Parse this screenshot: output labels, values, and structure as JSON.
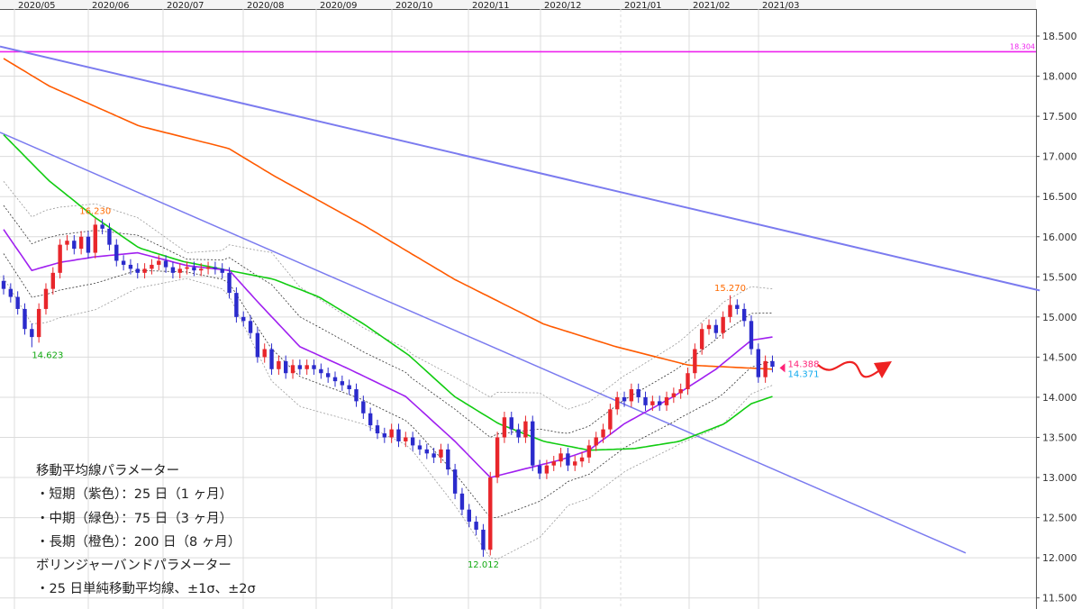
{
  "chart_data": {
    "type": "candlestick",
    "x_ticks": [
      "2020/05",
      "2020/06",
      "2020/07",
      "2020/08",
      "2020/09",
      "2020/10",
      "2020/11",
      "2020/12",
      "2021/01",
      "2021/02",
      "2021/03"
    ],
    "y_ticks": [
      "18.500",
      "18.000",
      "17.500",
      "17.000",
      "16.500",
      "16.000",
      "15.500",
      "15.000",
      "14.500",
      "14.000",
      "13.500",
      "13.000",
      "12.500",
      "12.000",
      "11.500"
    ],
    "ylim": [
      11.5,
      18.5
    ],
    "grid": true,
    "colors": {
      "up": "#e8262b",
      "down": "#2b2bcc",
      "ma_short": "#a020f0",
      "ma_mid": "#11cc11",
      "ma_long": "#ff5a00",
      "bollinger": "#777777",
      "trendline": "#7b7bef",
      "resistance": "#ee22ee"
    },
    "closes": [
      15.35,
      15.25,
      15.1,
      14.85,
      14.75,
      15.1,
      15.35,
      15.55,
      15.9,
      15.95,
      15.85,
      16.0,
      15.8,
      16.15,
      16.1,
      15.9,
      15.7,
      15.65,
      15.6,
      15.55,
      15.6,
      15.65,
      15.7,
      15.62,
      15.55,
      15.6,
      15.62,
      15.58,
      15.6,
      15.62,
      15.6,
      15.55,
      15.3,
      15.0,
      14.95,
      14.8,
      14.5,
      14.6,
      14.35,
      14.45,
      14.3,
      14.4,
      14.35,
      14.4,
      14.35,
      14.3,
      14.25,
      14.2,
      14.15,
      14.1,
      13.95,
      13.8,
      13.65,
      13.55,
      13.5,
      13.6,
      13.45,
      13.5,
      13.4,
      13.35,
      13.3,
      13.25,
      13.35,
      13.1,
      12.8,
      12.6,
      12.45,
      12.35,
      12.1,
      13.0,
      13.5,
      13.75,
      13.6,
      13.5,
      13.7,
      13.15,
      13.05,
      13.15,
      13.2,
      13.3,
      13.15,
      13.2,
      13.25,
      13.4,
      13.5,
      13.6,
      13.85,
      14.0,
      13.95,
      14.1,
      14.0,
      13.9,
      13.95,
      13.9,
      14.0,
      14.05,
      14.1,
      14.3,
      14.6,
      14.85,
      14.9,
      14.8,
      15.0,
      15.15,
      15.1,
      14.95,
      14.6,
      14.25,
      14.45,
      14.38
    ],
    "first_open": 15.45,
    "ma_short_25": [
      [
        0,
        16.09
      ],
      [
        4,
        15.58
      ],
      [
        8,
        15.68
      ],
      [
        13,
        15.75
      ],
      [
        19,
        15.8
      ],
      [
        26,
        15.64
      ],
      [
        32,
        15.58
      ],
      [
        36,
        15.19
      ],
      [
        42,
        14.63
      ],
      [
        49,
        14.35
      ],
      [
        57,
        14.01
      ],
      [
        64,
        13.45
      ],
      [
        69,
        13.0
      ],
      [
        74,
        13.11
      ],
      [
        79,
        13.22
      ],
      [
        83,
        13.34
      ],
      [
        88,
        13.67
      ],
      [
        95,
        14.01
      ],
      [
        101,
        14.35
      ],
      [
        106,
        14.71
      ],
      [
        109,
        14.75
      ]
    ],
    "ma_mid_75": [
      [
        0,
        17.27
      ],
      [
        6.4,
        16.7
      ],
      [
        12.8,
        16.25
      ],
      [
        19.2,
        15.86
      ],
      [
        25.5,
        15.69
      ],
      [
        31.9,
        15.58
      ],
      [
        38.3,
        15.47
      ],
      [
        44.7,
        15.25
      ],
      [
        51.1,
        14.91
      ],
      [
        57.5,
        14.52
      ],
      [
        63.9,
        14.01
      ],
      [
        70.2,
        13.67
      ],
      [
        76.6,
        13.45
      ],
      [
        83,
        13.34
      ],
      [
        89.4,
        13.36
      ],
      [
        95.8,
        13.45
      ],
      [
        102.2,
        13.67
      ],
      [
        106,
        13.92
      ],
      [
        109,
        14.01
      ]
    ],
    "ma_long_200": [
      [
        0,
        18.22
      ],
      [
        6.4,
        17.88
      ],
      [
        19.2,
        17.38
      ],
      [
        31.9,
        17.1
      ],
      [
        38.3,
        16.76
      ],
      [
        51.1,
        16.14
      ],
      [
        63.9,
        15.47
      ],
      [
        76.6,
        14.91
      ],
      [
        86.8,
        14.63
      ],
      [
        97.1,
        14.4
      ],
      [
        109,
        14.35
      ]
    ],
    "bollinger_sigma": [
      [
        0,
        0.3
      ],
      [
        6,
        0.35
      ],
      [
        13,
        0.33
      ],
      [
        20,
        0.2
      ],
      [
        26,
        0.08
      ],
      [
        31,
        0.12
      ],
      [
        38,
        0.4
      ],
      [
        45,
        0.35
      ],
      [
        51,
        0.3
      ],
      [
        58,
        0.3
      ],
      [
        64,
        0.4
      ],
      [
        70,
        0.52
      ],
      [
        76,
        0.45
      ],
      [
        80,
        0.3
      ],
      [
        89,
        0.3
      ],
      [
        96,
        0.32
      ],
      [
        102,
        0.38
      ],
      [
        109,
        0.3
      ]
    ],
    "trendlines": [
      {
        "from": [
          0,
          18.37
        ],
        "to": [
          146.9,
          15.33
        ]
      },
      {
        "from": [
          0,
          17.3
        ],
        "to": [
          136.4,
          12.06
        ]
      }
    ],
    "resistance": {
      "value": 18.304,
      "label": "18.304"
    },
    "annotations": [
      {
        "text": "16.230",
        "bar": 13,
        "value": 16.23,
        "color": "#ff6a00",
        "pos": "above"
      },
      {
        "text": "14.623",
        "bar": 4,
        "value": 14.623,
        "color": "#11aa11",
        "pos": "below"
      },
      {
        "text": "12.012",
        "bar": 68,
        "value": 12.012,
        "color": "#11aa11",
        "pos": "below"
      },
      {
        "text": "15.270",
        "bar": 103,
        "value": 15.27,
        "color": "#ff6a00",
        "pos": "above"
      }
    ],
    "last_price": {
      "bid": "14.388",
      "ask": "14.371",
      "bid_color": "#ff2277",
      "ask_color": "#11aaee"
    }
  },
  "notes": {
    "ma_title": "移動平均線パラメーター",
    "ma_short": "・短期（紫色）：25 日（1 ヶ月）",
    "ma_mid": "・中期（緑色）：75 日（3 ヶ月）",
    "ma_long": "・長期（橙色）：200 日（8 ヶ月）",
    "bb_title": "ボリンジャーバンドパラメーター",
    "bb_desc": "・25 日単純移動平均線、±1σ、±2σ"
  }
}
